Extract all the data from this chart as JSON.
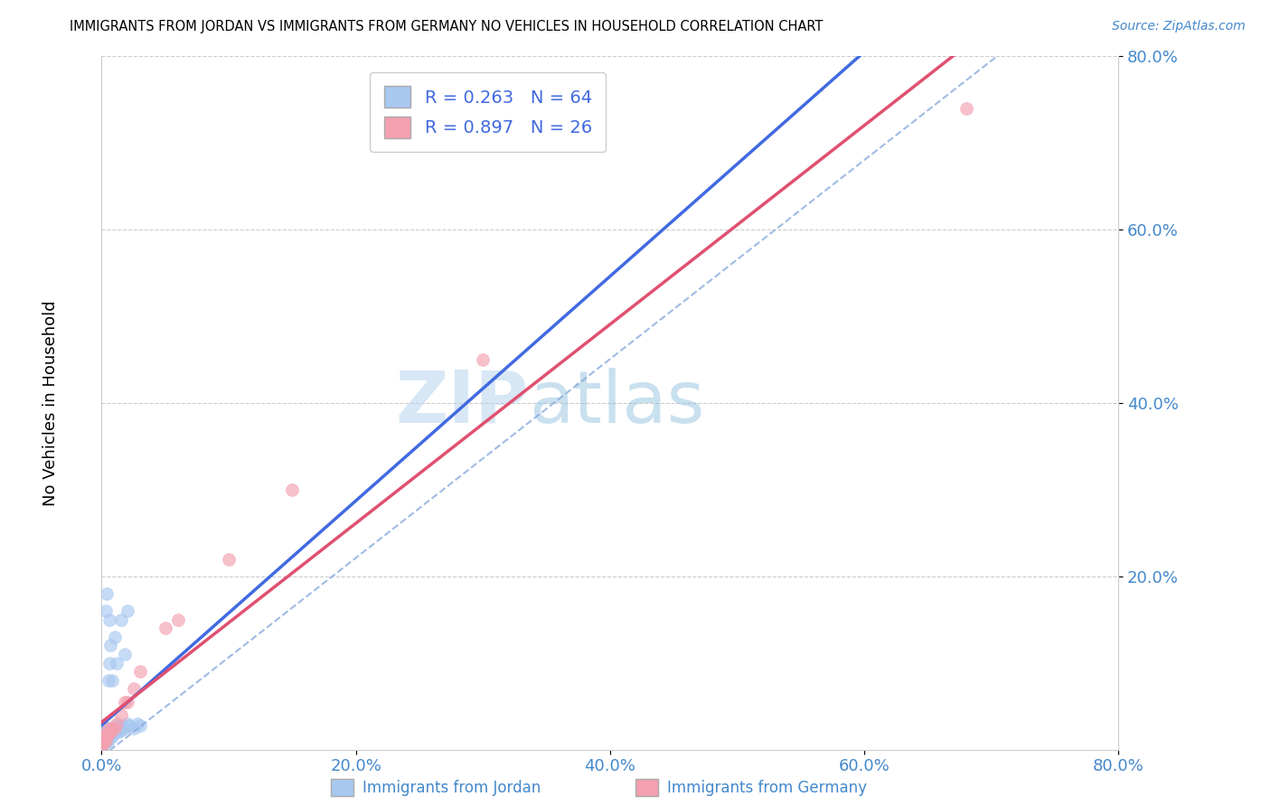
{
  "title": "IMMIGRANTS FROM JORDAN VS IMMIGRANTS FROM GERMANY NO VEHICLES IN HOUSEHOLD CORRELATION CHART",
  "source": "Source: ZipAtlas.com",
  "ylabel": "No Vehicles in Household",
  "xlim": [
    0,
    0.8
  ],
  "ylim": [
    0,
    0.8
  ],
  "xticks": [
    0.0,
    0.2,
    0.4,
    0.6,
    0.8
  ],
  "yticks": [
    0.2,
    0.4,
    0.6,
    0.8
  ],
  "jordan_color": "#a8c8f0",
  "germany_color": "#f4a0b0",
  "jordan_line_color": "#4169e1",
  "germany_line_color": "#e05070",
  "jordan_R": 0.263,
  "jordan_N": 64,
  "germany_R": 0.897,
  "germany_N": 26,
  "watermark_zip": "ZIP",
  "watermark_atlas": "atlas",
  "tick_color": "#4488cc",
  "jordan_x": [
    0.0005,
    0.001,
    0.001,
    0.001,
    0.001,
    0.001,
    0.002,
    0.002,
    0.002,
    0.002,
    0.002,
    0.002,
    0.002,
    0.003,
    0.003,
    0.003,
    0.003,
    0.003,
    0.003,
    0.004,
    0.004,
    0.004,
    0.004,
    0.004,
    0.005,
    0.005,
    0.005,
    0.005,
    0.006,
    0.006,
    0.006,
    0.007,
    0.007,
    0.008,
    0.008,
    0.008,
    0.009,
    0.009,
    0.01,
    0.011,
    0.011,
    0.012,
    0.013,
    0.014,
    0.015,
    0.016,
    0.018,
    0.02,
    0.022,
    0.025,
    0.028,
    0.03,
    0.003,
    0.004,
    0.006,
    0.015,
    0.02,
    0.008,
    0.005,
    0.006,
    0.007,
    0.01,
    0.012,
    0.018
  ],
  "jordan_y": [
    0.005,
    0.01,
    0.008,
    0.012,
    0.006,
    0.015,
    0.01,
    0.015,
    0.012,
    0.018,
    0.008,
    0.02,
    0.01,
    0.015,
    0.012,
    0.018,
    0.02,
    0.01,
    0.008,
    0.015,
    0.02,
    0.018,
    0.012,
    0.025,
    0.018,
    0.015,
    0.022,
    0.01,
    0.02,
    0.018,
    0.025,
    0.015,
    0.022,
    0.02,
    0.025,
    0.015,
    0.022,
    0.018,
    0.025,
    0.02,
    0.028,
    0.025,
    0.02,
    0.025,
    0.022,
    0.028,
    0.025,
    0.03,
    0.028,
    0.025,
    0.03,
    0.028,
    0.16,
    0.18,
    0.15,
    0.15,
    0.16,
    0.08,
    0.08,
    0.1,
    0.12,
    0.13,
    0.1,
    0.11
  ],
  "germany_x": [
    0.0005,
    0.001,
    0.001,
    0.002,
    0.002,
    0.003,
    0.003,
    0.004,
    0.005,
    0.005,
    0.006,
    0.007,
    0.008,
    0.01,
    0.012,
    0.015,
    0.018,
    0.02,
    0.025,
    0.03,
    0.05,
    0.06,
    0.1,
    0.15,
    0.3,
    0.68
  ],
  "germany_y": [
    0.005,
    0.008,
    0.01,
    0.012,
    0.015,
    0.01,
    0.018,
    0.015,
    0.018,
    0.025,
    0.02,
    0.02,
    0.025,
    0.025,
    0.03,
    0.04,
    0.055,
    0.055,
    0.07,
    0.09,
    0.14,
    0.15,
    0.22,
    0.3,
    0.45,
    0.74
  ]
}
